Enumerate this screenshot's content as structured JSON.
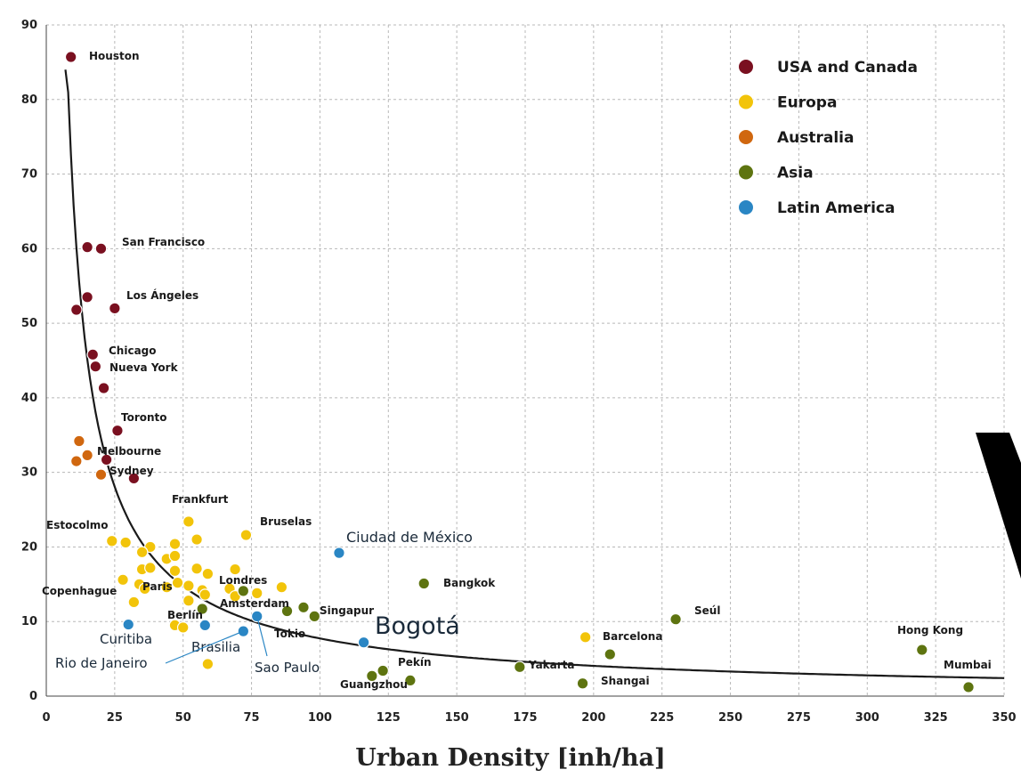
{
  "chart_data": {
    "type": "scatter",
    "xlabel": "Urban Density [inh/ha]",
    "ylabel": "",
    "xlim": [
      0,
      350
    ],
    "ylim": [
      0,
      90
    ],
    "x_ticks": [
      0,
      25,
      50,
      75,
      100,
      125,
      150,
      175,
      200,
      225,
      250,
      275,
      300,
      325,
      350
    ],
    "y_ticks": [
      0,
      10,
      20,
      30,
      40,
      50,
      60,
      70,
      80,
      90
    ],
    "grid": true,
    "legend_position": "top-right",
    "series": [
      {
        "name": "USA and Canada",
        "color": "#7a1020",
        "points": [
          {
            "x": 9,
            "y": 85.7,
            "label": "Houston"
          },
          {
            "x": 15,
            "y": 60.2
          },
          {
            "x": 20,
            "y": 60,
            "label": "San Francisco"
          },
          {
            "x": 15,
            "y": 53.5
          },
          {
            "x": 25,
            "y": 52,
            "label": "Los Ángeles"
          },
          {
            "x": 11,
            "y": 51.8
          },
          {
            "x": 17,
            "y": 45.8,
            "label": "Chicago"
          },
          {
            "x": 18,
            "y": 44.2,
            "label": "Nueva York"
          },
          {
            "x": 21,
            "y": 41.3
          },
          {
            "x": 26,
            "y": 35.6,
            "label": "Toronto"
          },
          {
            "x": 22,
            "y": 31.7
          },
          {
            "x": 32,
            "y": 29.2
          }
        ]
      },
      {
        "name": "Europa",
        "color": "#f2c40a",
        "points": [
          {
            "x": 52,
            "y": 23.4,
            "label": "Frankfurt"
          },
          {
            "x": 73,
            "y": 21.6,
            "label": "Bruselas"
          },
          {
            "x": 24,
            "y": 20.8,
            "label": "Estocolmo"
          },
          {
            "x": 29,
            "y": 20.6
          },
          {
            "x": 38,
            "y": 20
          },
          {
            "x": 47,
            "y": 20.4
          },
          {
            "x": 55,
            "y": 21
          },
          {
            "x": 35,
            "y": 19.3
          },
          {
            "x": 44,
            "y": 18.4
          },
          {
            "x": 47,
            "y": 18.8
          },
          {
            "x": 35,
            "y": 17
          },
          {
            "x": 38,
            "y": 17.2
          },
          {
            "x": 47,
            "y": 16.8
          },
          {
            "x": 55,
            "y": 17.1
          },
          {
            "x": 59,
            "y": 16.4
          },
          {
            "x": 69,
            "y": 17
          },
          {
            "x": 28,
            "y": 15.6
          },
          {
            "x": 34,
            "y": 15
          },
          {
            "x": 48,
            "y": 15.2
          },
          {
            "x": 52,
            "y": 14.8
          },
          {
            "x": 57,
            "y": 14.2
          },
          {
            "x": 67,
            "y": 14.4
          },
          {
            "x": 77,
            "y": 13.8
          },
          {
            "x": 86,
            "y": 14.6
          },
          {
            "x": 36,
            "y": 14.4,
            "label": "Paris"
          },
          {
            "x": 44,
            "y": 14.6
          },
          {
            "x": 58,
            "y": 13.6
          },
          {
            "x": 69,
            "y": 13.4,
            "label": "Londres"
          },
          {
            "x": 32,
            "y": 12.6
          },
          {
            "x": 52,
            "y": 12.8
          },
          {
            "x": 47,
            "y": 9.5,
            "label": "Berlín"
          },
          {
            "x": 50,
            "y": 9.2
          },
          {
            "x": 59,
            "y": 4.3
          },
          {
            "x": 197,
            "y": 7.9,
            "label": "Barcelona"
          }
        ]
      },
      {
        "name": "Australia",
        "color": "#d0670f",
        "points": [
          {
            "x": 12,
            "y": 34.2
          },
          {
            "x": 11,
            "y": 31.5
          },
          {
            "x": 15,
            "y": 32.3,
            "label": "Melbourne"
          },
          {
            "x": 20,
            "y": 29.7,
            "label": "Sydney"
          }
        ]
      },
      {
        "name": "Asia",
        "color": "#5e7410",
        "points": [
          {
            "x": 138,
            "y": 15.1,
            "label": "Bangkok"
          },
          {
            "x": 72,
            "y": 14.1
          },
          {
            "x": 57,
            "y": 11.7,
            "label": "Amsterdam"
          },
          {
            "x": 88,
            "y": 11.4
          },
          {
            "x": 94,
            "y": 11.9
          },
          {
            "x": 98,
            "y": 10.7,
            "label": "Singapur"
          },
          {
            "x": 230,
            "y": 10.3,
            "label": "Seúl"
          },
          {
            "x": 320,
            "y": 6.2,
            "label": "Hong Kong"
          },
          {
            "x": 206,
            "y": 5.6
          },
          {
            "x": 123,
            "y": 3.4,
            "label": "Pekín"
          },
          {
            "x": 119,
            "y": 2.7
          },
          {
            "x": 133,
            "y": 2.1,
            "label": "Guangzhou"
          },
          {
            "x": 173,
            "y": 3.9,
            "label": "Yakarta"
          },
          {
            "x": 196,
            "y": 1.7,
            "label": "Shangai"
          },
          {
            "x": 337,
            "y": 1.2,
            "label": "Mumbai"
          }
        ]
      },
      {
        "name": "Latin America",
        "color": "#2a86c4",
        "points": [
          {
            "x": 107,
            "y": 19.2,
            "label": "Ciudad de México"
          },
          {
            "x": 77,
            "y": 10.7,
            "label": "Sao Paulo"
          },
          {
            "x": 58,
            "y": 9.5,
            "label": "Brasilia"
          },
          {
            "x": 30,
            "y": 9.6,
            "label": "Curitiba"
          },
          {
            "x": 72,
            "y": 8.7,
            "label": "Rio de Janeiro"
          },
          {
            "x": 116,
            "y": 7.2,
            "label": "Bogotá"
          }
        ]
      }
    ],
    "extra_labels": [
      "Copenhague",
      "Tokio"
    ],
    "trend": {
      "type": "power",
      "a": 560,
      "b": -0.93
    }
  }
}
